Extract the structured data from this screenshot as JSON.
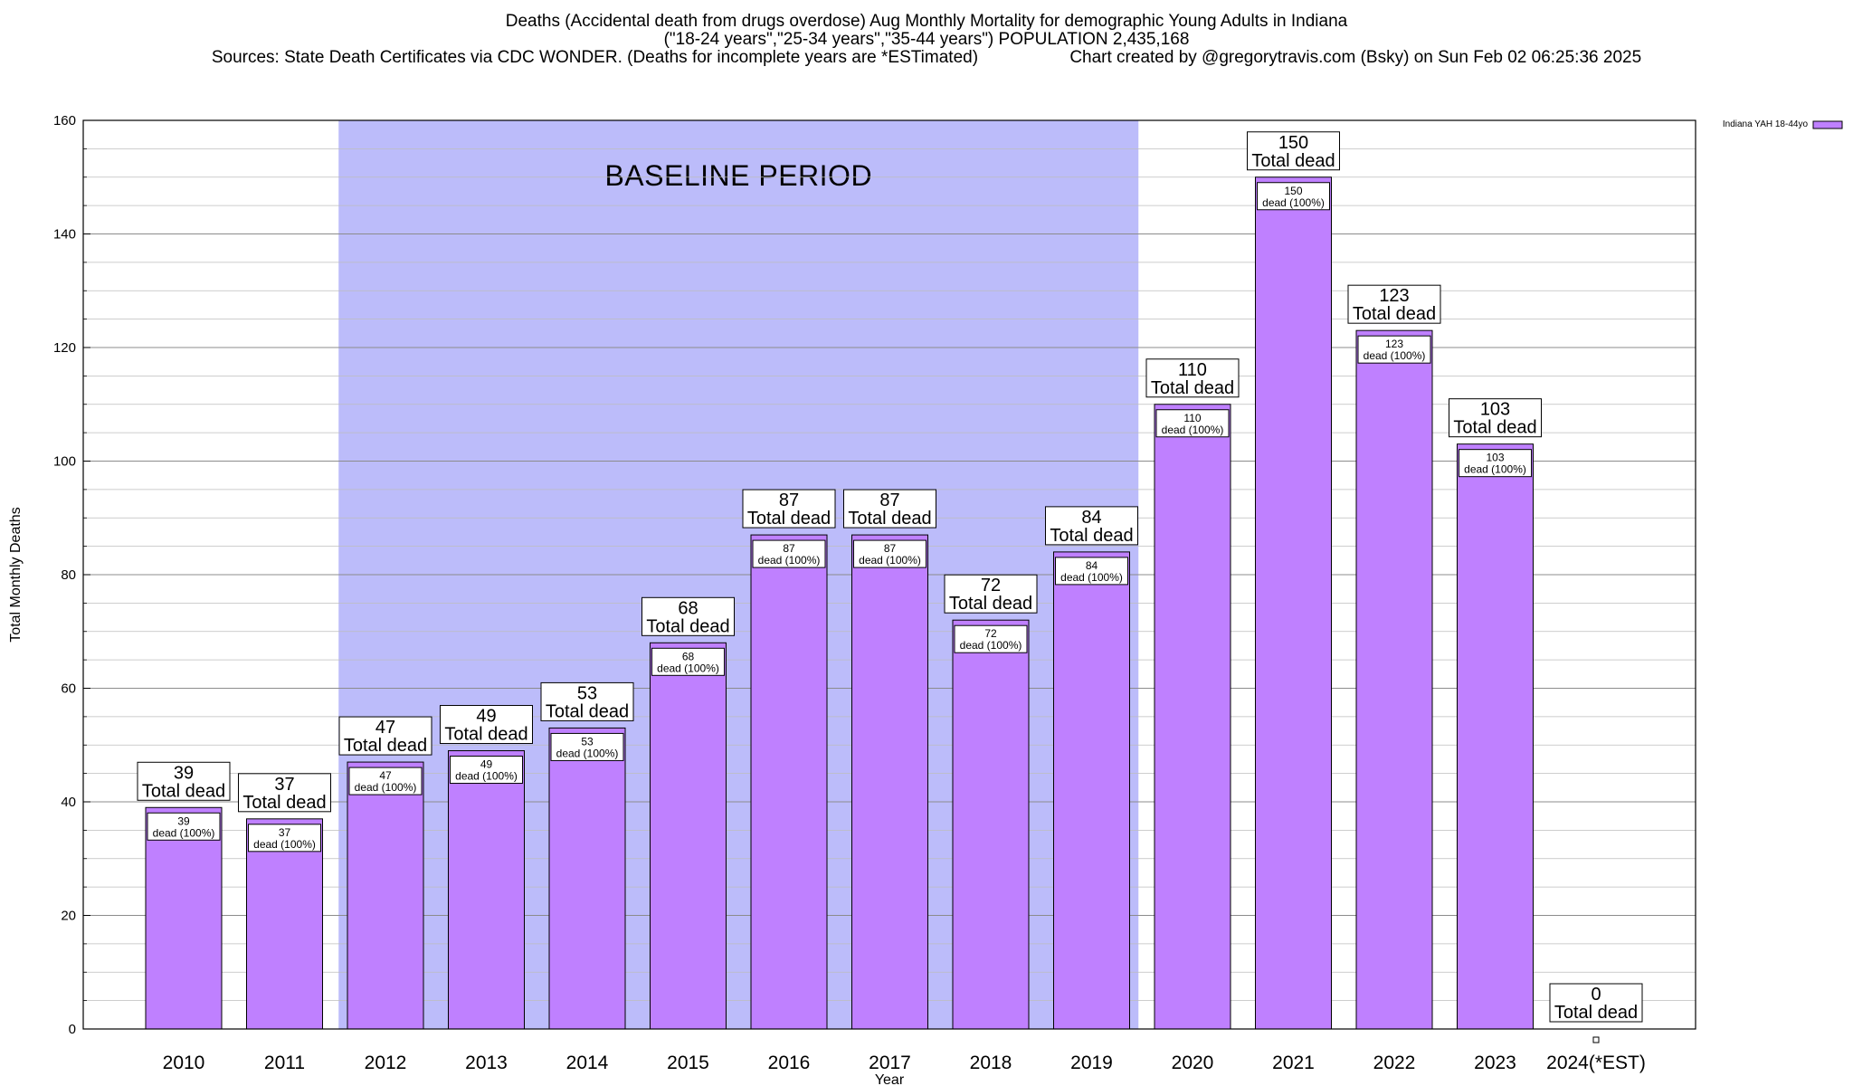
{
  "title_lines": [
    "Deaths (Accidental death from drugs overdose) Aug Monthly Mortality for demographic Young Adults in Indiana",
    "(\"18-24 years\",\"25-34 years\",\"35-44 years\") POPULATION 2,435,168"
  ],
  "sources_text": "Sources: State Death Certificates via CDC WONDER. (Deaths for incomplete years are *ESTimated)",
  "credit_text": "Chart created by @gregorytravis.com (Bsky) on Sun Feb 02 06:25:36 2025",
  "chart_data": {
    "type": "bar",
    "categories": [
      "2010",
      "2011",
      "2012",
      "2013",
      "2014",
      "2015",
      "2016",
      "2017",
      "2018",
      "2019",
      "2020",
      "2021",
      "2022",
      "2023",
      "2024(*EST)"
    ],
    "series": [
      {
        "name": "Indiana YAH 18-44yo",
        "values": [
          39,
          37,
          47,
          49,
          53,
          68,
          87,
          87,
          72,
          84,
          110,
          150,
          123,
          103,
          0
        ]
      }
    ],
    "top_label_suffix": "Total dead",
    "inner_label_suffix": "dead (100%)",
    "xlabel": "Year",
    "ylabel": "Total Monthly Deaths",
    "ylim": [
      0,
      160
    ],
    "yticks": [
      0,
      20,
      40,
      60,
      80,
      100,
      120,
      140,
      160
    ],
    "grid": true,
    "legend_position": "top-right",
    "annotation": {
      "text": "BASELINE PERIOD",
      "from_category": "2012",
      "to_category": "2019",
      "color": "#bcbcfa"
    },
    "bar_color": "#bf80ff",
    "bar_edge_color": "#000000"
  }
}
